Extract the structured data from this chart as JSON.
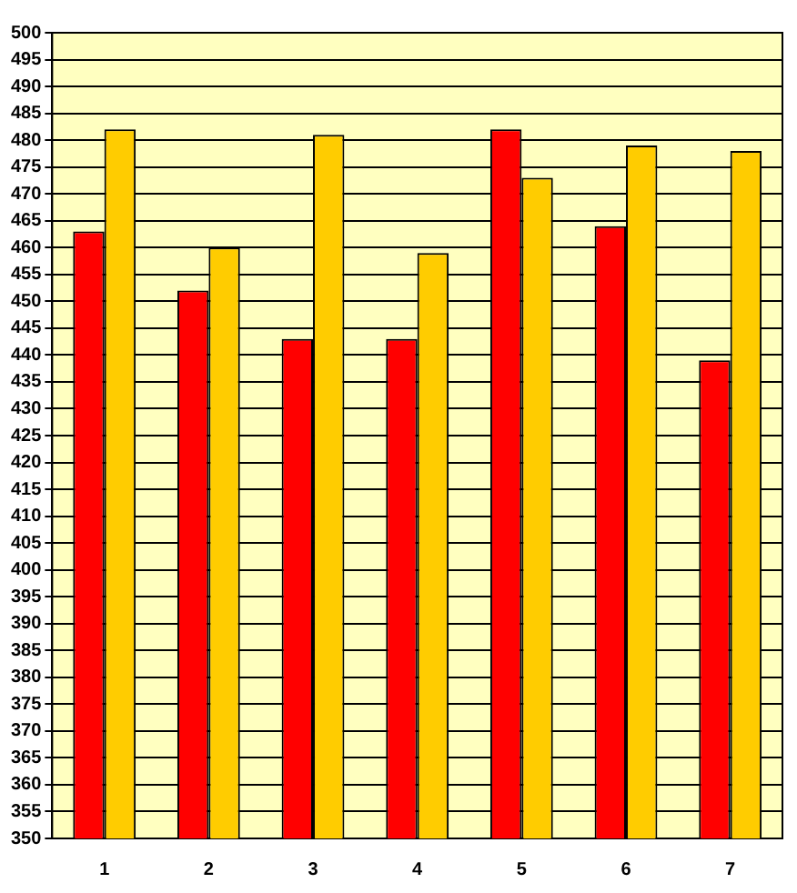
{
  "chart_data": {
    "type": "bar",
    "categories": [
      "1",
      "2",
      "3",
      "4",
      "5",
      "6",
      "7"
    ],
    "series": [
      {
        "color": "#ff0000",
        "values": [
          463,
          452,
          443,
          443,
          482,
          464,
          439
        ]
      },
      {
        "color": "#ffcc00",
        "values": [
          482,
          460,
          481,
          459,
          473,
          479,
          478
        ]
      }
    ],
    "ylim": [
      350,
      500
    ],
    "yticks": [
      350,
      355,
      360,
      365,
      370,
      375,
      380,
      385,
      390,
      395,
      400,
      405,
      410,
      415,
      420,
      425,
      430,
      435,
      440,
      445,
      450,
      455,
      460,
      465,
      470,
      475,
      480,
      485,
      490,
      495,
      500
    ],
    "grid": "y",
    "legend": false
  }
}
